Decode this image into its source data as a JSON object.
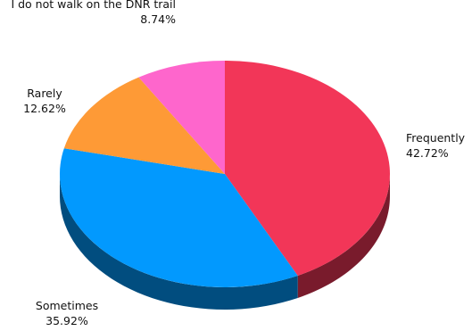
{
  "chart_data": {
    "type": "pie",
    "categories": [
      "Frequently",
      "Sometimes",
      "Rarely",
      "I do not walk on the DNR trail"
    ],
    "values": [
      42.72,
      35.92,
      12.62,
      8.74
    ],
    "value_labels": [
      "42.72%",
      "35.92%",
      "12.62%",
      "8.74%"
    ],
    "colors": [
      "#f23658",
      "#0299fe",
      "#fe9a36",
      "#fe66cc"
    ]
  }
}
